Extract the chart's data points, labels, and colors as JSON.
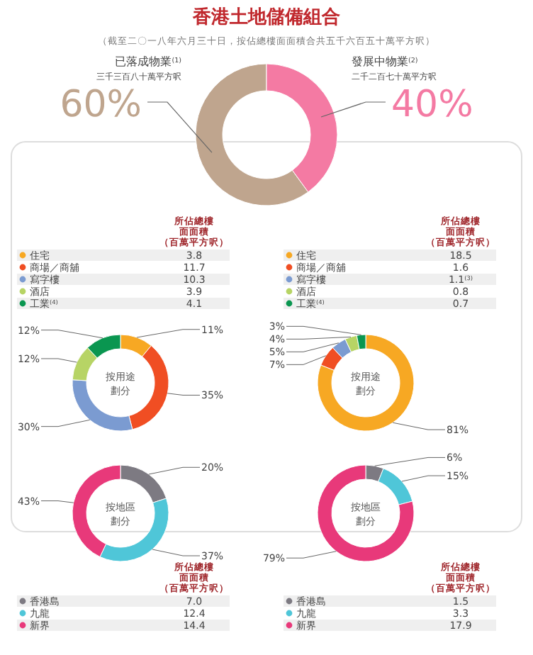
{
  "chart_data": [
    {
      "type": "donut",
      "title": "香港土地儲備組合",
      "subtitle": "（截至二〇一八年六月三十日，按佔總樓面面積合共五千六百五十萬平方呎）",
      "categories": [
        "已落成物業$^{(1)}$",
        "發展中物業$^{(2)}$"
      ],
      "values": [
        60,
        40
      ],
      "value_labels": [
        "60%",
        "40%"
      ],
      "colors": [
        "#bfa58e",
        "#f47aa3"
      ],
      "data_labels": true,
      "annotations": [
        "三千三百八十萬平方呎",
        "二千二百七十萬平方呎"
      ]
    },
    {
      "type": "donut",
      "title": "按用途劃分",
      "legend_title": "所佔總樓面面積（百萬平方呎）",
      "categories": [
        "住宅",
        "商場／商舖",
        "寫字樓",
        "酒店",
        "工業$^{(4)}$"
      ],
      "values": [
        11,
        35,
        30,
        12,
        12
      ],
      "value_labels": [
        "11%",
        "35%",
        "30%",
        "12%",
        "12%"
      ],
      "colors": [
        "#f7a823",
        "#f04e23",
        "#7b9bd1",
        "#b7d465",
        "#0a9650"
      ],
      "data_labels": true,
      "legend": "top",
      "annotations": [
        {
          "text": "3.8",
          "x": "住宅"
        },
        {
          "text": "11.7",
          "x": "商場／商舖"
        },
        {
          "text": "10.3",
          "x": "寫字樓"
        },
        {
          "text": "3.9",
          "x": "酒店"
        },
        {
          "text": "4.1",
          "x": "工業$^{(4)}$"
        }
      ]
    },
    {
      "type": "donut",
      "title": "按用途劃分",
      "legend_title": "所佔總樓面面積（百萬平方呎）",
      "categories": [
        "住宅",
        "商場／商舖",
        "寫字樓",
        "酒店",
        "工業$^{(4)}$"
      ],
      "values": [
        81,
        7,
        5,
        4,
        3
      ],
      "value_labels": [
        "81%",
        "7%",
        "5%",
        "4%",
        "3%"
      ],
      "colors": [
        "#f7a823",
        "#f04e23",
        "#7b9bd1",
        "#b7d465",
        "#0a9650"
      ],
      "data_labels": true,
      "legend": "top",
      "annotations": [
        {
          "text": "18.5",
          "x": "住宅"
        },
        {
          "text": "1.6",
          "x": "商場／商舖"
        },
        {
          "text": "1.1$^{(3)}$",
          "x": "寫字樓"
        },
        {
          "text": "0.8",
          "x": "酒店"
        },
        {
          "text": "0.7",
          "x": "工業$^{(4)}$"
        }
      ]
    },
    {
      "type": "donut",
      "title": "按地區劃分",
      "legend_title": "所佔總樓面面積（百萬平方呎）",
      "categories": [
        "香港島",
        "九龍",
        "新界"
      ],
      "values": [
        20,
        37,
        43
      ],
      "value_labels": [
        "20%",
        "37%",
        "43%"
      ],
      "colors": [
        "#7d7a82",
        "#4fc6d8",
        "#e8397a"
      ],
      "data_labels": true,
      "legend": "bottom",
      "annotations": [
        {
          "text": "7.0",
          "x": "香港島"
        },
        {
          "text": "12.4",
          "x": "九龍"
        },
        {
          "text": "14.4",
          "x": "新界"
        }
      ]
    },
    {
      "type": "donut",
      "title": "按地區劃分",
      "legend_title": "所佔總樓面面積（百萬平方呎）",
      "categories": [
        "香港島",
        "九龍",
        "新界"
      ],
      "values": [
        6,
        15,
        79
      ],
      "value_labels": [
        "6%",
        "15%",
        "79%"
      ],
      "colors": [
        "#7d7a82",
        "#4fc6d8",
        "#e8397a"
      ],
      "data_labels": true,
      "legend": "bottom",
      "annotations": [
        {
          "text": "1.5",
          "x": "香港島"
        },
        {
          "text": "3.3",
          "x": "九龍"
        },
        {
          "text": "17.9",
          "x": "新界"
        }
      ]
    }
  ]
}
